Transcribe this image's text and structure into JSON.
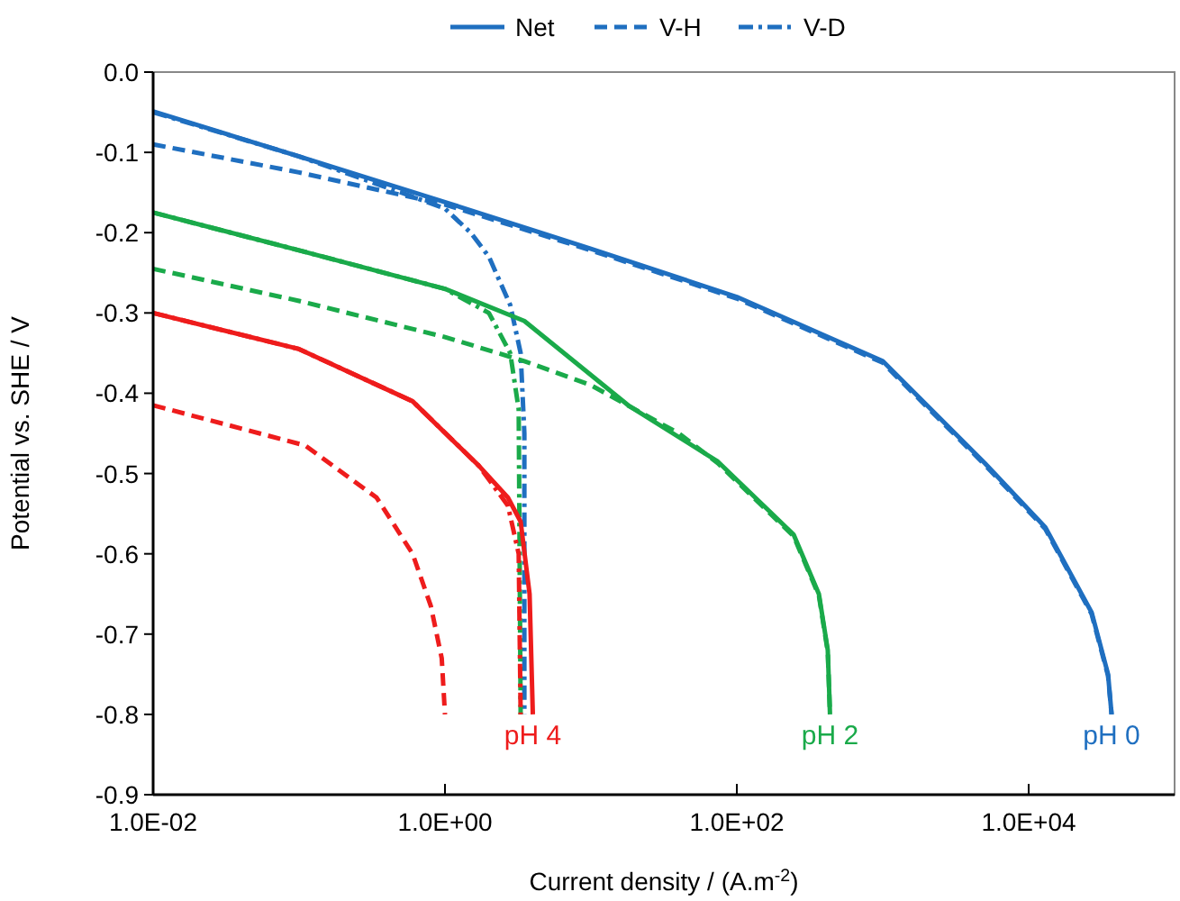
{
  "chart_data": {
    "type": "line",
    "xlabel": "Current density / (A.m$^{-2}$)",
    "ylabel": "Potential vs. SHE / V",
    "log": "x",
    "grid": false,
    "legend": "top",
    "marker": "none",
    "xlim": [
      0.01,
      100000
    ],
    "xticks": [
      {
        "value": 0.01,
        "label": "1.0E-02"
      },
      {
        "value": 1,
        "label": "1.0E+00"
      },
      {
        "value": 100,
        "label": "1.0E+02"
      },
      {
        "value": 10000,
        "label": "1.0E+04"
      }
    ],
    "ylim": [
      -0.9,
      0
    ],
    "yticks": [
      {
        "value": 0,
        "label": "0.0"
      },
      -0.1,
      -0.2,
      -0.3,
      -0.4,
      -0.5,
      -0.6,
      -0.7,
      -0.8,
      -0.9
    ],
    "series": [
      {
        "name": "Net",
        "color": "#1f6fc0",
        "line_style": "solid",
        "x": [
          0.01,
          0.1,
          1,
          10,
          100,
          1000,
          5000,
          13000,
          27000,
          35000,
          37000
        ],
        "values": [
          -0.049,
          -0.105,
          -0.162,
          -0.22,
          -0.28,
          -0.36,
          -0.487,
          -0.567,
          -0.673,
          -0.75,
          -0.8
        ]
      },
      {
        "name": "V-H",
        "color": "#1f6fc0",
        "line_style": "dashed",
        "x": [
          0.01,
          0.1,
          1,
          10,
          100,
          1000,
          5000,
          13000,
          27000,
          35000,
          37000
        ],
        "values": [
          -0.09,
          -0.125,
          -0.165,
          -0.222,
          -0.282,
          -0.362,
          -0.489,
          -0.569,
          -0.675,
          -0.752,
          -0.8
        ]
      },
      {
        "name": "V-D",
        "color": "#1f6fc0",
        "line_style": "dashdot",
        "x": [
          0.01,
          0.1,
          0.5,
          1,
          1.5,
          2,
          2.8,
          3.3,
          3.5,
          3.5
        ],
        "values": [
          -0.05,
          -0.105,
          -0.15,
          -0.17,
          -0.2,
          -0.23,
          -0.29,
          -0.35,
          -0.45,
          -0.8
        ]
      },
      {
        "color": "#1aaa4a",
        "line_style": "solid",
        "x": [
          0.01,
          0.1,
          1,
          3.5,
          18,
          74,
          245,
          365,
          420,
          435
        ],
        "values": [
          -0.175,
          -0.222,
          -0.27,
          -0.31,
          -0.415,
          -0.485,
          -0.576,
          -0.65,
          -0.72,
          -0.8
        ]
      },
      {
        "color": "#1aaa4a",
        "line_style": "dashed",
        "x": [
          0.01,
          0.1,
          1,
          3.5,
          10,
          40,
          74,
          245,
          365,
          420,
          435
        ],
        "values": [
          -0.245,
          -0.285,
          -0.33,
          -0.36,
          -0.39,
          -0.45,
          -0.487,
          -0.578,
          -0.652,
          -0.722,
          -0.8
        ]
      },
      {
        "color": "#1aaa4a",
        "line_style": "dashdot",
        "x": [
          0.01,
          0.1,
          1,
          2,
          2.8,
          3.2,
          3.3
        ],
        "values": [
          -0.175,
          -0.222,
          -0.27,
          -0.3,
          -0.35,
          -0.42,
          -0.8
        ]
      },
      {
        "color": "#ee1c1c",
        "line_style": "solid",
        "x": [
          0.01,
          0.1,
          0.6,
          1.7,
          2.7,
          3.3,
          3.8,
          4
        ],
        "values": [
          -0.3,
          -0.345,
          -0.41,
          -0.49,
          -0.53,
          -0.56,
          -0.65,
          -0.8
        ]
      },
      {
        "color": "#ee1c1c",
        "line_style": "dashed",
        "x": [
          0.01,
          0.11,
          0.34,
          0.6,
          0.8,
          0.95,
          1
        ],
        "values": [
          -0.415,
          -0.465,
          -0.53,
          -0.6,
          -0.665,
          -0.73,
          -0.8
        ]
      },
      {
        "color": "#ee1c1c",
        "line_style": "dashdot",
        "x": [
          0.01,
          0.1,
          0.6,
          1.7,
          2.7,
          3.2,
          3.3
        ],
        "values": [
          -0.3,
          -0.345,
          -0.41,
          -0.49,
          -0.54,
          -0.6,
          -0.8
        ]
      }
    ],
    "annotations": [
      {
        "text": "pH 4",
        "x": 4,
        "y": -0.81
      },
      {
        "text": "pH 2",
        "x": 435,
        "y": -0.81
      },
      {
        "text": "pH 0",
        "x": 37000,
        "y": -0.81
      }
    ]
  }
}
